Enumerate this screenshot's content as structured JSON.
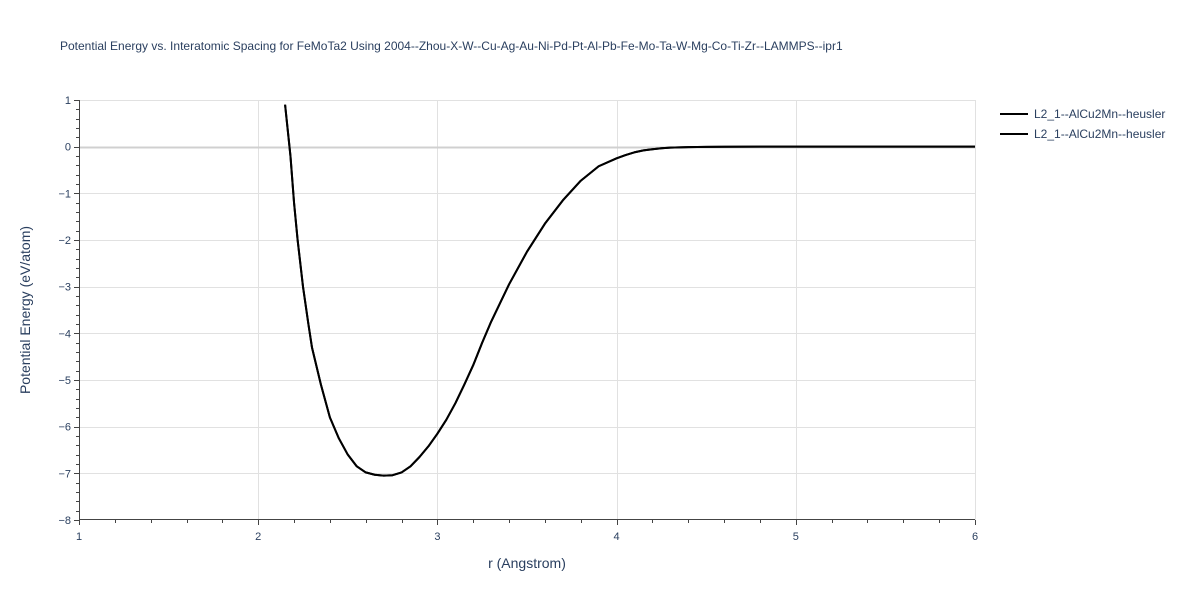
{
  "chart_data": {
    "type": "line",
    "title": "Potential Energy vs. Interatomic Spacing for FeMoTa2 Using 2004--Zhou-X-W--Cu-Ag-Au-Ni-Pd-Pt-Al-Pb-Fe-Mo-Ta-W-Mg-Co-Ti-Zr--LAMMPS--ipr1",
    "xlabel": "r (Angstrom)",
    "ylabel": "Potential Energy (eV/atom)",
    "xlim": [
      1,
      6
    ],
    "ylim": [
      -8,
      1
    ],
    "x_ticks": [
      1,
      2,
      3,
      4,
      5,
      6
    ],
    "y_ticks": [
      1,
      0,
      -1,
      -2,
      -3,
      -4,
      -5,
      -6,
      -7,
      -8
    ],
    "x_tick_labels": [
      "1",
      "2",
      "3",
      "4",
      "5",
      "6"
    ],
    "y_tick_labels": [
      "1",
      "0",
      "−1",
      "−2",
      "−3",
      "−4",
      "−5",
      "−6",
      "−7",
      "−8"
    ],
    "grid": true,
    "legend_position": "top-right",
    "series": [
      {
        "name": "L2_1--AlCu2Mn--heusler",
        "color": "#000000",
        "x": [
          2.15,
          2.18,
          2.2,
          2.22,
          2.25,
          2.28,
          2.3,
          2.35,
          2.4,
          2.45,
          2.5,
          2.55,
          2.6,
          2.65,
          2.7,
          2.75,
          2.8,
          2.85,
          2.9,
          2.95,
          3.0,
          3.05,
          3.1,
          3.15,
          3.2,
          3.25,
          3.3,
          3.4,
          3.5,
          3.6,
          3.7,
          3.8,
          3.9,
          4.0,
          4.05,
          4.1,
          4.15,
          4.2,
          4.25,
          4.3,
          4.4,
          4.5,
          4.6,
          4.8,
          5.0,
          5.5,
          6.0
        ],
        "y": [
          0.9,
          -0.2,
          -1.2,
          -2.0,
          -3.0,
          -3.8,
          -4.3,
          -5.1,
          -5.8,
          -6.25,
          -6.6,
          -6.85,
          -6.98,
          -7.03,
          -7.05,
          -7.04,
          -6.98,
          -6.85,
          -6.65,
          -6.42,
          -6.15,
          -5.85,
          -5.5,
          -5.1,
          -4.68,
          -4.2,
          -3.75,
          -2.95,
          -2.25,
          -1.65,
          -1.15,
          -0.73,
          -0.42,
          -0.25,
          -0.18,
          -0.12,
          -0.08,
          -0.055,
          -0.035,
          -0.02,
          -0.01,
          -0.004,
          -0.002,
          0.0,
          0.0,
          0.0,
          0.0
        ]
      },
      {
        "name": "L2_1--AlCu2Mn--heusler",
        "color": "#000000",
        "x": [
          2.15,
          2.18,
          2.2,
          2.22,
          2.25,
          2.28,
          2.3,
          2.35,
          2.4,
          2.45,
          2.5,
          2.55,
          2.6,
          2.65,
          2.7,
          2.75,
          2.8,
          2.85,
          2.9,
          2.95,
          3.0,
          3.05,
          3.1,
          3.15,
          3.2,
          3.25,
          3.3,
          3.4,
          3.5,
          3.6,
          3.7,
          3.8,
          3.9,
          4.0,
          4.05,
          4.1,
          4.15,
          4.2,
          4.25,
          4.3,
          4.4,
          4.5,
          4.6,
          4.8,
          5.0,
          5.5,
          6.0
        ],
        "y": [
          0.9,
          -0.2,
          -1.2,
          -2.0,
          -3.0,
          -3.8,
          -4.3,
          -5.1,
          -5.8,
          -6.25,
          -6.6,
          -6.85,
          -6.98,
          -7.03,
          -7.05,
          -7.04,
          -6.98,
          -6.85,
          -6.65,
          -6.42,
          -6.15,
          -5.85,
          -5.5,
          -5.1,
          -4.68,
          -4.2,
          -3.75,
          -2.95,
          -2.25,
          -1.65,
          -1.15,
          -0.73,
          -0.42,
          -0.25,
          -0.18,
          -0.12,
          -0.08,
          -0.055,
          -0.035,
          -0.02,
          -0.01,
          -0.004,
          -0.002,
          0.0,
          0.0,
          0.0,
          0.0
        ]
      }
    ]
  }
}
